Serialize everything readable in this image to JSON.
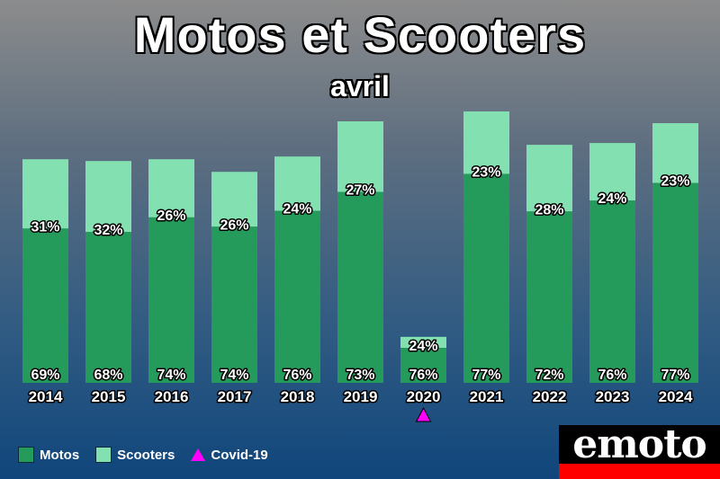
{
  "title": "Motos et Scooters",
  "subtitle": "avril",
  "colors": {
    "motos": "#259b5b",
    "scooters": "#83e0b0",
    "covid": "#ff00ff"
  },
  "legend": [
    {
      "label": "Motos",
      "icon": "swatch-motos"
    },
    {
      "label": "Scooters",
      "icon": "swatch-scooters"
    },
    {
      "label": "Covid-19",
      "icon": "triangle-covid"
    }
  ],
  "logo": "emoto",
  "chart_data": {
    "type": "bar",
    "stacked": true,
    "categories": [
      "2014",
      "2015",
      "2016",
      "2017",
      "2018",
      "2019",
      "2020",
      "2021",
      "2022",
      "2023",
      "2024"
    ],
    "totals": [
      248,
      246,
      248,
      234,
      251,
      290,
      51,
      301,
      264,
      266,
      288
    ],
    "series": [
      {
        "name": "Motos",
        "percent_labels": [
          "69%",
          "68%",
          "74%",
          "74%",
          "76%",
          "73%",
          "76%",
          "77%",
          "72%",
          "76%",
          "77%"
        ]
      },
      {
        "name": "Scooters",
        "percent_labels": [
          "31%",
          "32%",
          "26%",
          "26%",
          "24%",
          "27%",
          "24%",
          "23%",
          "28%",
          "24%",
          "23%"
        ]
      }
    ],
    "annotations": [
      {
        "category": "2020",
        "marker": "triangle",
        "meaning": "Covid-19"
      }
    ],
    "legend_position": "bottom-left",
    "grid": false
  }
}
